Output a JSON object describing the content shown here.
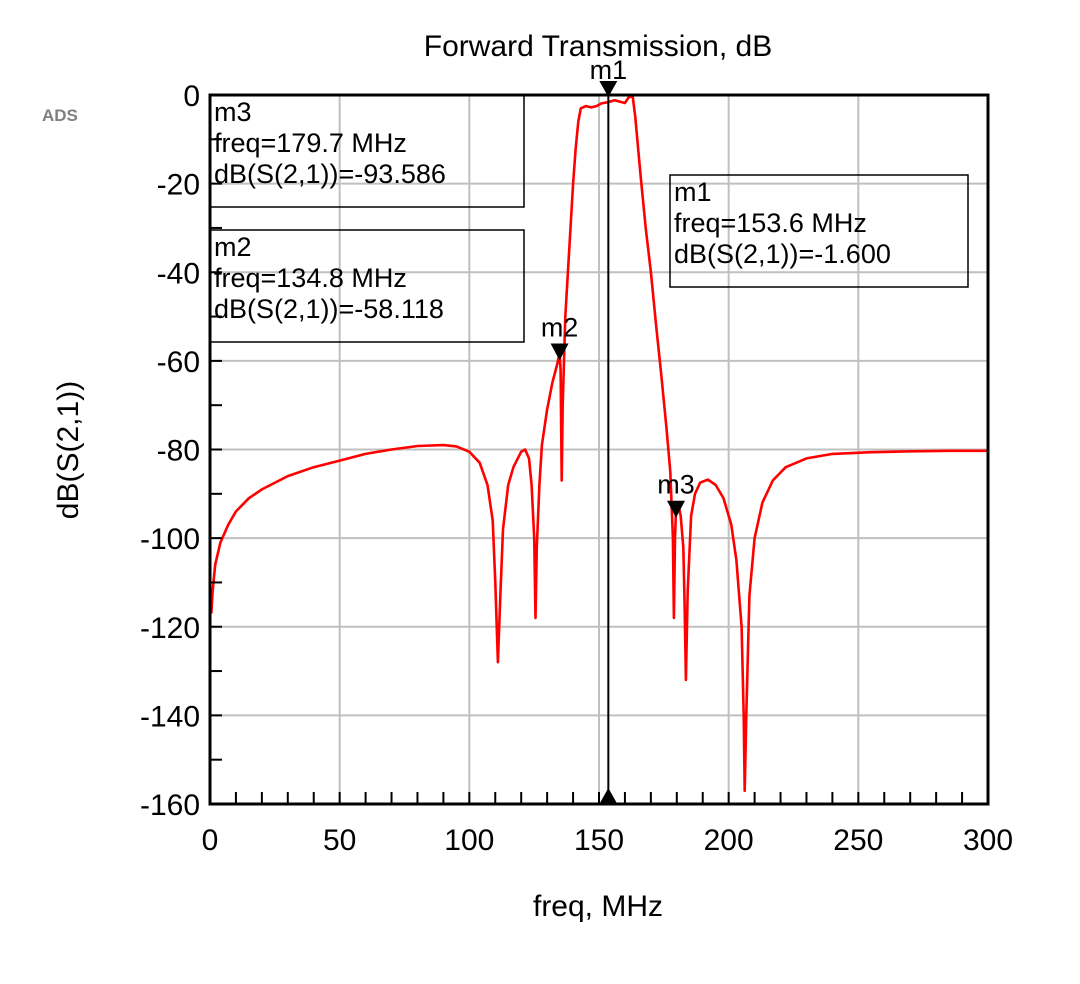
{
  "app_label": "ADS",
  "chart_data": {
    "type": "line",
    "title": "Forward Transmission, dB",
    "xlabel": "freq, MHz",
    "ylabel": "dB(S(2,1))",
    "xlim": [
      0,
      300
    ],
    "ylim": [
      -160,
      0
    ],
    "x_ticks": [
      0,
      50,
      100,
      150,
      200,
      250,
      300
    ],
    "x_tick_labels": [
      "0",
      "50",
      "100",
      "150",
      "200",
      "250",
      "300"
    ],
    "y_ticks": [
      0,
      -20,
      -40,
      -60,
      -80,
      -100,
      -120,
      -140,
      -160
    ],
    "y_tick_labels": [
      "0",
      "-20",
      "-40",
      "-60",
      "-80",
      "-100",
      "-120",
      "-140",
      "-160"
    ],
    "x_minor_step": 10,
    "y_minor_step": 10,
    "grid": true,
    "colors": {
      "trace": "#ff0000",
      "axis_label": "#ff0000",
      "grid": "#c0c0c0",
      "frame": "#000000",
      "marker": "#000000"
    },
    "series": [
      {
        "name": "dB(S(2,1))",
        "points": [
          [
            0.5,
            -117
          ],
          [
            1,
            -112
          ],
          [
            2,
            -106
          ],
          [
            4,
            -101
          ],
          [
            7,
            -97
          ],
          [
            10,
            -94
          ],
          [
            15,
            -91
          ],
          [
            20,
            -89
          ],
          [
            30,
            -86
          ],
          [
            40,
            -84
          ],
          [
            50,
            -82.5
          ],
          [
            60,
            -81
          ],
          [
            70,
            -80
          ],
          [
            80,
            -79.2
          ],
          [
            90,
            -79
          ],
          [
            95,
            -79.3
          ],
          [
            100,
            -80.5
          ],
          [
            104,
            -83
          ],
          [
            107,
            -88
          ],
          [
            109,
            -96
          ],
          [
            110,
            -110
          ],
          [
            111,
            -128
          ],
          [
            112,
            -112
          ],
          [
            113,
            -98
          ],
          [
            115,
            -88
          ],
          [
            117,
            -84
          ],
          [
            120,
            -80.5
          ],
          [
            121.5,
            -80
          ],
          [
            123,
            -82
          ],
          [
            124,
            -88
          ],
          [
            125,
            -100
          ],
          [
            125.5,
            -118
          ],
          [
            126,
            -102
          ],
          [
            127,
            -88
          ],
          [
            128,
            -79
          ],
          [
            130,
            -71
          ],
          [
            132,
            -65
          ],
          [
            134,
            -60.5
          ],
          [
            134.8,
            -58.1
          ],
          [
            135.2,
            -62
          ],
          [
            135.6,
            -87
          ],
          [
            136,
            -70
          ],
          [
            137,
            -50
          ],
          [
            138,
            -40
          ],
          [
            139,
            -30
          ],
          [
            140,
            -20
          ],
          [
            141,
            -12
          ],
          [
            142,
            -6
          ],
          [
            143,
            -3
          ],
          [
            145,
            -2.5
          ],
          [
            147,
            -2.8
          ],
          [
            149,
            -2.5
          ],
          [
            151,
            -1.9
          ],
          [
            153.6,
            -1.6
          ],
          [
            156,
            -1.2
          ],
          [
            158,
            -1.5
          ],
          [
            160,
            -1.8
          ],
          [
            161.5,
            -0.5
          ],
          [
            163,
            -0.3
          ],
          [
            164,
            -5
          ],
          [
            166,
            -18
          ],
          [
            168,
            -30
          ],
          [
            170,
            -40
          ],
          [
            172,
            -52
          ],
          [
            174,
            -63
          ],
          [
            176,
            -75
          ],
          [
            177.5,
            -85
          ],
          [
            178.5,
            -100
          ],
          [
            178.9,
            -118
          ],
          [
            179.3,
            -100
          ],
          [
            179.7,
            -93.6
          ],
          [
            180.5,
            -92
          ],
          [
            181.5,
            -95
          ],
          [
            182.5,
            -102
          ],
          [
            183,
            -115
          ],
          [
            183.5,
            -132
          ],
          [
            184.2,
            -112
          ],
          [
            185.5,
            -95
          ],
          [
            187,
            -90
          ],
          [
            189,
            -87.5
          ],
          [
            192,
            -86.8
          ],
          [
            195,
            -88
          ],
          [
            198,
            -91
          ],
          [
            201,
            -97
          ],
          [
            203,
            -105
          ],
          [
            205,
            -120
          ],
          [
            205.8,
            -140
          ],
          [
            206.2,
            -157
          ],
          [
            206.8,
            -140
          ],
          [
            208,
            -113
          ],
          [
            210,
            -100
          ],
          [
            213,
            -92
          ],
          [
            217,
            -87
          ],
          [
            222,
            -84
          ],
          [
            230,
            -82
          ],
          [
            240,
            -81
          ],
          [
            255,
            -80.6
          ],
          [
            270,
            -80.4
          ],
          [
            285,
            -80.3
          ],
          [
            300,
            -80.3
          ]
        ]
      }
    ],
    "markers": [
      {
        "id": "m1",
        "freq_mhz": 153.6,
        "value_db": -1.6,
        "lines": [
          "m1",
          "freq=153.6 MHz",
          "dB(S(2,1))=-1.600"
        ]
      },
      {
        "id": "m2",
        "freq_mhz": 134.8,
        "value_db": -58.118,
        "lines": [
          "m2",
          "freq=134.8 MHz",
          "dB(S(2,1))=-58.118"
        ]
      },
      {
        "id": "m3",
        "freq_mhz": 179.7,
        "value_db": -93.586,
        "lines": [
          "m3",
          "freq=179.7 MHz",
          "dB(S(2,1))=-93.586"
        ]
      }
    ]
  }
}
